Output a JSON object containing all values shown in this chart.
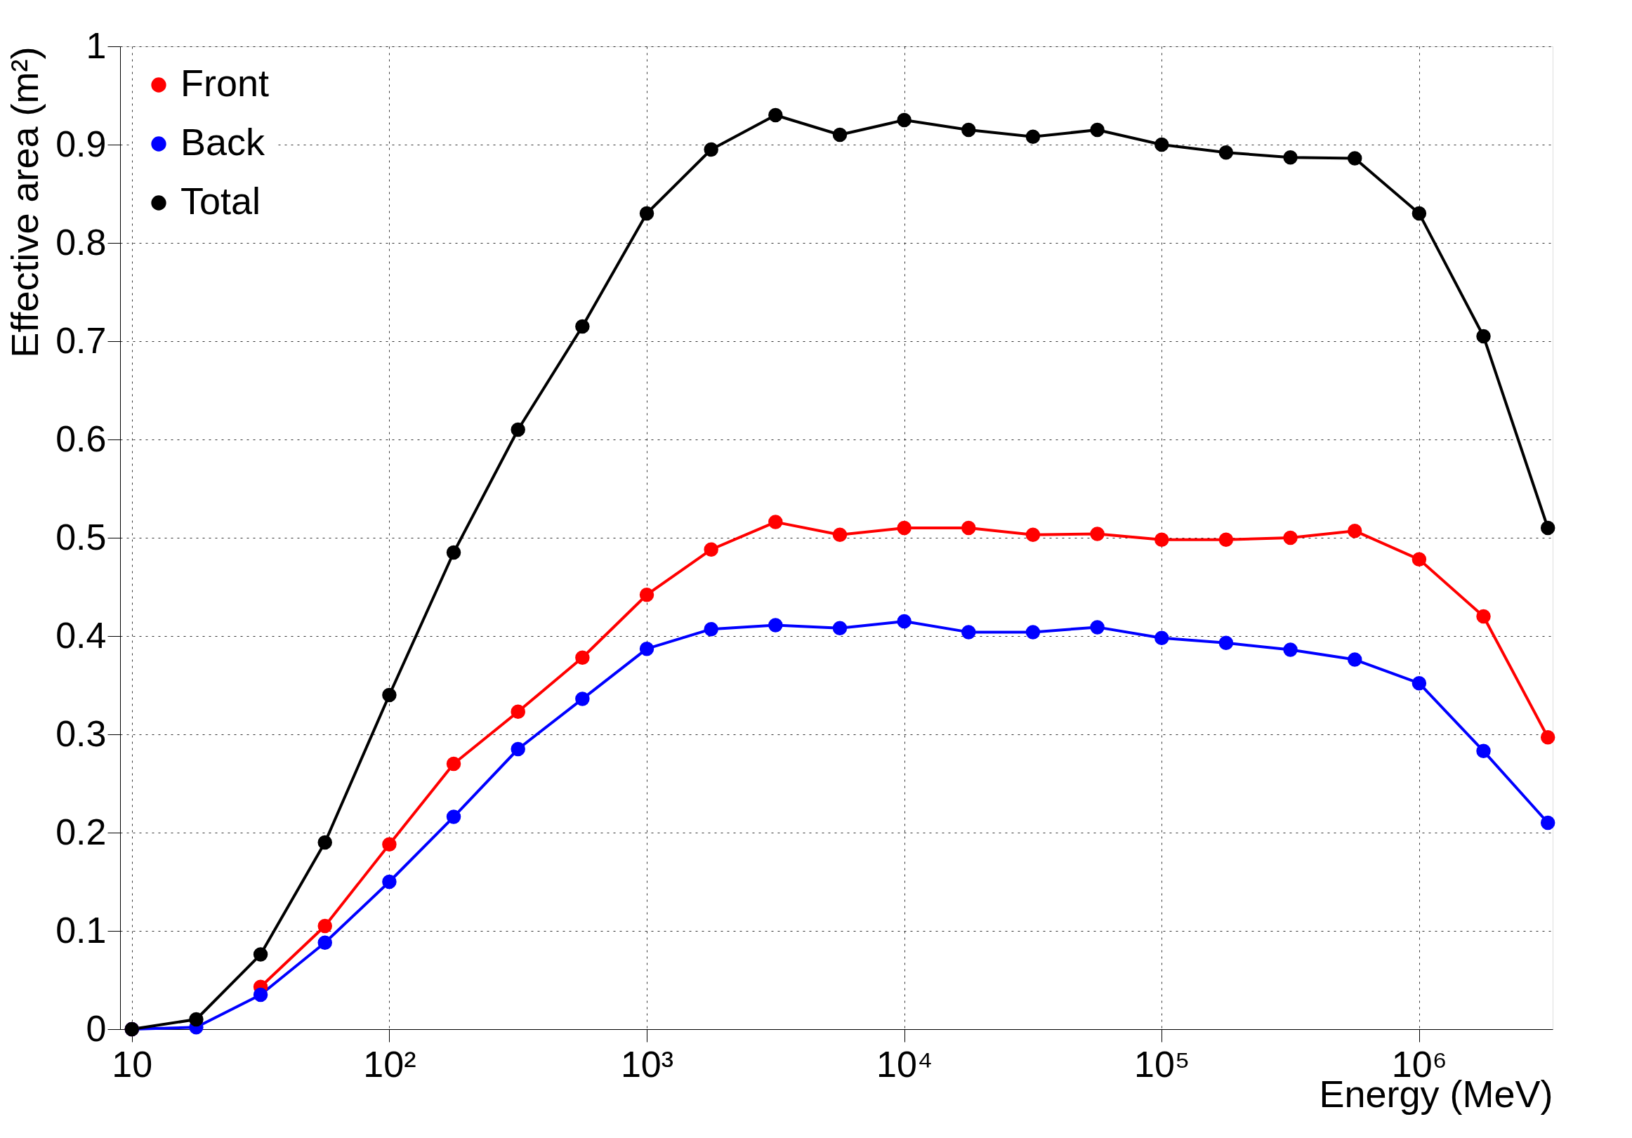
{
  "chart_data": {
    "type": "line",
    "xlabel": "Energy (MeV)",
    "ylabel": "Effective area (m²)",
    "x": [
      10,
      17.78,
      31.62,
      56.23,
      100,
      177.8,
      316.2,
      562.3,
      1000,
      1778,
      3162,
      5623,
      10000,
      17780,
      31620,
      56230,
      100000,
      177800,
      316200,
      562300,
      1000000,
      1778000,
      3162000
    ],
    "series": [
      {
        "name": "Front",
        "color": "#ff0000",
        "values": [
          0,
          null,
          0.043,
          0.105,
          0.188,
          0.27,
          0.323,
          0.378,
          0.442,
          0.488,
          0.516,
          0.503,
          0.51,
          0.51,
          0.503,
          0.504,
          0.498,
          0.498,
          0.5,
          0.507,
          0.478,
          0.42,
          0.297
        ]
      },
      {
        "name": "Back",
        "color": "#0000ff",
        "values": [
          0,
          0.002,
          0.035,
          0.088,
          0.15,
          0.216,
          0.285,
          0.336,
          0.387,
          0.407,
          0.411,
          0.408,
          0.415,
          0.404,
          0.404,
          0.409,
          0.398,
          0.393,
          0.386,
          0.376,
          0.352,
          0.283,
          0.21
        ]
      },
      {
        "name": "Total",
        "color": "#000000",
        "values": [
          0,
          0.01,
          0.076,
          0.19,
          0.34,
          0.485,
          0.61,
          0.715,
          0.83,
          0.895,
          0.93,
          0.91,
          0.925,
          0.915,
          0.908,
          0.915,
          0.9,
          0.892,
          0.887,
          0.886,
          0.83,
          0.705,
          0.51
        ]
      }
    ],
    "log": "x",
    "xlim": [
      9,
      3300000
    ],
    "ylim": [
      0,
      1
    ],
    "xticks": [
      10,
      {
        "value": 100,
        "label": "10²"
      },
      {
        "value": 1000,
        "label": "10³"
      },
      {
        "value": 10000,
        "label": "10⁴"
      },
      {
        "value": 100000,
        "label": "10⁵"
      },
      {
        "value": 1000000,
        "label": "10⁶"
      }
    ],
    "yticks": [
      0,
      0.1,
      0.2,
      0.3,
      0.4,
      0.5,
      0.6,
      0.7,
      0.8,
      0.9,
      1
    ],
    "grid": true,
    "legend": "top left",
    "marker": "circle",
    "line_style": "solid"
  }
}
